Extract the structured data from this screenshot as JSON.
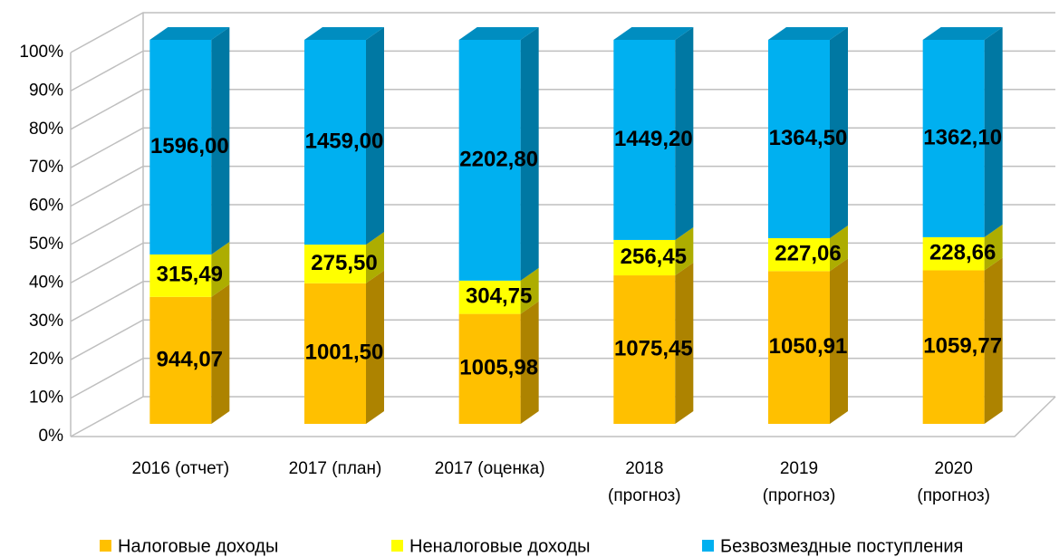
{
  "chart_data": {
    "type": "bar",
    "stacking": "percent",
    "categories": [
      "2016 (отчет)",
      "2017 (план)",
      "2017 (оценка)",
      "2018\n(прогноз)",
      "2019\n(прогноз)",
      "2020\n(прогноз)"
    ],
    "series": [
      {
        "name": "Налоговые доходы",
        "color": "#ffc000",
        "values": [
          944.07,
          1001.5,
          1005.98,
          1075.45,
          1050.91,
          1059.77
        ],
        "value_labels": [
          "944,07",
          "1001,50",
          "1005,98",
          "1075,45",
          "1050,91",
          "1059,77"
        ]
      },
      {
        "name": "Неналоговые доходы",
        "color": "#ffff00",
        "values": [
          315.49,
          275.5,
          304.75,
          256.45,
          227.06,
          228.66
        ],
        "value_labels": [
          "315,49",
          "275,50",
          "304,75",
          "256,45",
          "227,06",
          "228,66"
        ]
      },
      {
        "name": "Безвозмездные поступления",
        "color": "#00b0f0",
        "values": [
          1596,
          1459,
          2202.8,
          1449.2,
          1364.5,
          1362.1
        ],
        "value_labels": [
          "1596,00",
          "1459,00",
          "2202,80",
          "1449,20",
          "1364,50",
          "1362,10"
        ]
      }
    ],
    "ylim": [
      0,
      100
    ],
    "yticks": [
      {
        "value": 0,
        "label": "0%"
      },
      {
        "value": 10,
        "label": "10%"
      },
      {
        "value": 20,
        "label": "20%"
      },
      {
        "value": 30,
        "label": "30%"
      },
      {
        "value": 40,
        "label": "40%"
      },
      {
        "value": 50,
        "label": "50%"
      },
      {
        "value": 60,
        "label": "60%"
      },
      {
        "value": 70,
        "label": "70%"
      },
      {
        "value": 80,
        "label": "80%"
      },
      {
        "value": 90,
        "label": "90%"
      },
      {
        "value": 100,
        "label": "100%"
      }
    ],
    "grid": true,
    "legend": "bottom"
  }
}
